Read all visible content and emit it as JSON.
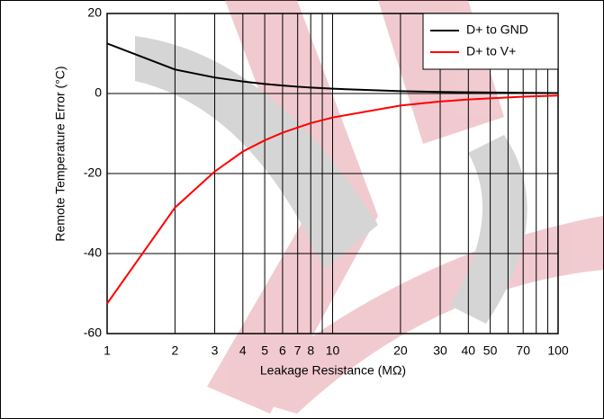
{
  "chart_data": {
    "type": "line",
    "xlabel": "Leakage Resistance (MΩ)",
    "ylabel": "Remote Temperature Error (°C)",
    "x": [
      1,
      2,
      3,
      4,
      5,
      6,
      7,
      8,
      10,
      20,
      30,
      40,
      50,
      70,
      100
    ],
    "series": [
      {
        "name": "D+ to GND",
        "color": "#000000",
        "values": [
          12.5,
          6,
          4,
          3,
          2.4,
          2,
          1.7,
          1.5,
          1.2,
          0.6,
          0.4,
          0.3,
          0.25,
          0.17,
          0.12
        ]
      },
      {
        "name": "D+ to V+",
        "color": "#ff0000",
        "values": [
          -52.5,
          -28.5,
          -19.5,
          -14.5,
          -11.7,
          -9.8,
          -8.5,
          -7.4,
          -6,
          -3,
          -2,
          -1.5,
          -1.2,
          -0.8,
          -0.5
        ]
      }
    ],
    "xscale": "log",
    "xlim": [
      1,
      100
    ],
    "xticks": [
      1,
      2,
      3,
      4,
      5,
      6,
      7,
      8,
      10,
      20,
      30,
      40,
      50,
      70,
      100
    ],
    "minor_xticks": [
      9,
      60,
      80,
      90
    ],
    "ylim": [
      -60,
      20
    ],
    "yticks": [
      -60,
      -40,
      -20,
      0,
      20
    ],
    "grid": true,
    "legend": "upper right"
  }
}
